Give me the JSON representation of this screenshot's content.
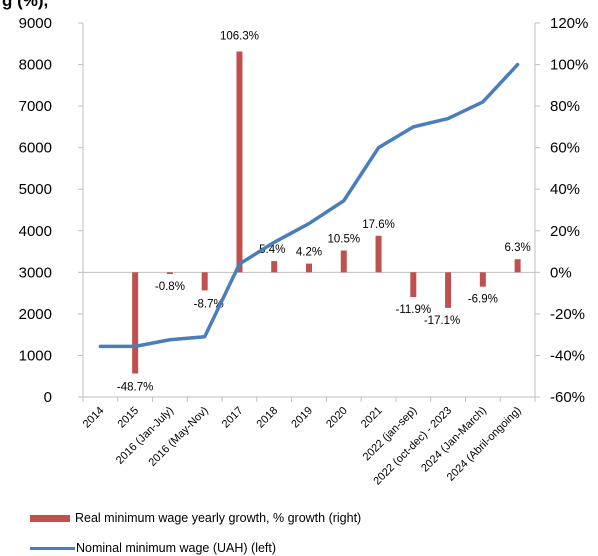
{
  "colors": {
    "bar": "#C0504D",
    "line": "#4A7EBB",
    "axis": "#BFBFBF"
  },
  "title_fragment": "g  (%),  ",
  "chart_data": {
    "type": "bar+line",
    "categories": [
      "2014",
      "2015",
      "2016 (Jan-July)",
      "2016 (May-Nov)",
      "2017",
      "2018",
      "2019",
      "2020",
      "2021",
      "2022 (jan-sep)",
      "2022 (oct-dec) - 2023",
      "2024 (Jan-March)",
      "2024 (Abril-ongoing)"
    ],
    "left_axis": {
      "min": 0,
      "max": 9000,
      "step": 1000,
      "ticks": [
        "0",
        "1000",
        "2000",
        "3000",
        "4000",
        "5000",
        "6000",
        "7000",
        "8000",
        "9000"
      ]
    },
    "right_axis": {
      "min": -60,
      "max": 120,
      "step": 20,
      "ticks": [
        "-60%",
        "-40%",
        "-20%",
        "0%",
        "20%",
        "40%",
        "60%",
        "80%",
        "100%",
        "120%"
      ]
    },
    "series": [
      {
        "name": "Real minimum wage yearly growth, % growth (right)",
        "type": "bar",
        "axis": "right",
        "values": [
          null,
          -48.7,
          -0.8,
          -8.7,
          106.3,
          5.4,
          4.2,
          10.5,
          17.6,
          -11.9,
          -17.1,
          -6.9,
          6.3
        ],
        "labels": [
          null,
          "-48.7%",
          "-0.8%",
          "-8.7%",
          "106.3%",
          "5.4%",
          "4.2%",
          "10.5%",
          "17.6%",
          "-11.9%",
          "-17.1%",
          "-6.9%",
          "6.3%"
        ]
      },
      {
        "name": "Nominal minimum wage (UAH) (left)",
        "type": "line",
        "axis": "left",
        "values": [
          1218,
          1218,
          1378,
          1450,
          3200,
          3723,
          4173,
          4723,
          6000,
          6500,
          6700,
          7100,
          8000
        ]
      }
    ]
  }
}
